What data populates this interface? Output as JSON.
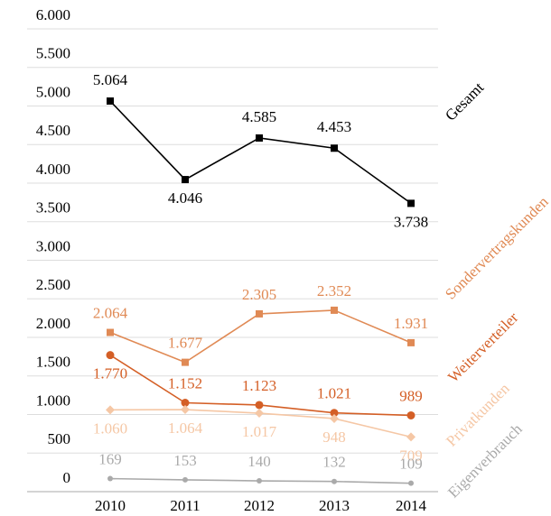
{
  "chart_data": {
    "type": "line",
    "categories": [
      "2010",
      "2011",
      "2012",
      "2013",
      "2014"
    ],
    "ylim": [
      0,
      6000
    ],
    "yticks": [
      0,
      500,
      {
        "value": 1000,
        "label": "1.000"
      },
      {
        "value": 1500,
        "label": "1.500"
      },
      {
        "value": 2000,
        "label": "2.000"
      },
      {
        "value": 2500,
        "label": "2.500"
      },
      {
        "value": 3000,
        "label": "3.000"
      },
      {
        "value": 3500,
        "label": "3.500"
      },
      {
        "value": 4000,
        "label": "4.000"
      },
      {
        "value": 4500,
        "label": "4.500"
      },
      {
        "value": 5000,
        "label": "5.000"
      },
      {
        "value": 5500,
        "label": "5.500"
      },
      {
        "value": 6000,
        "label": "6.000"
      }
    ],
    "grid": true,
    "series": [
      {
        "name": "Gesamt",
        "color": "#000000",
        "marker": "square",
        "values": [
          5064,
          4046,
          4585,
          4453,
          3738
        ],
        "value_labels": [
          "5.064",
          "4.046",
          "4.585",
          "4.453",
          "3.738"
        ]
      },
      {
        "name": "Sondervertragskunden",
        "color": "#e08a55",
        "marker": "square",
        "values": [
          2064,
          1677,
          2305,
          2352,
          1931
        ],
        "value_labels": [
          "2.064",
          "1.677",
          "2.305",
          "2.352",
          "1.931"
        ]
      },
      {
        "name": "Weiterverteiler",
        "color": "#d45f26",
        "marker": "circle",
        "values": [
          1770,
          1152,
          1123,
          1021,
          989
        ],
        "value_labels": [
          "1.770",
          "1.152",
          "1.123",
          "1.021",
          "989"
        ]
      },
      {
        "name": "Privatkunden",
        "color": "#f5c7a5",
        "marker": "diamond",
        "values": [
          1060,
          1064,
          1017,
          948,
          709
        ],
        "value_labels": [
          "1.060",
          "1.064",
          "1.017",
          "948",
          "709"
        ]
      },
      {
        "name": "Eigenverbrauch",
        "color": "#aaaaaa",
        "marker": "circle",
        "values": [
          169,
          153,
          140,
          132,
          109
        ],
        "value_labels": [
          "169",
          "153",
          "140",
          "132",
          "109"
        ]
      }
    ]
  }
}
